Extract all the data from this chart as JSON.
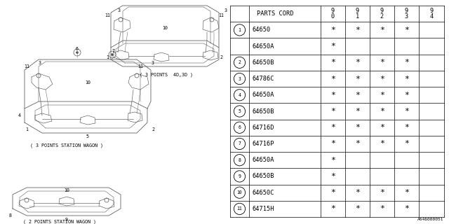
{
  "bg_color": "#ffffff",
  "rows": [
    [
      "1",
      "64650",
      true,
      true,
      true,
      true,
      false
    ],
    [
      "",
      "64650A",
      true,
      false,
      false,
      false,
      false
    ],
    [
      "2",
      "64650B",
      true,
      true,
      true,
      true,
      false
    ],
    [
      "3",
      "64786C",
      true,
      true,
      true,
      true,
      false
    ],
    [
      "4",
      "64650A",
      true,
      true,
      true,
      true,
      false
    ],
    [
      "5",
      "64650B",
      true,
      true,
      true,
      true,
      false
    ],
    [
      "6",
      "64716D",
      true,
      true,
      true,
      true,
      false
    ],
    [
      "7",
      "64716P",
      true,
      true,
      true,
      true,
      false
    ],
    [
      "8",
      "64650A",
      true,
      false,
      false,
      false,
      false
    ],
    [
      "9",
      "64650B",
      true,
      false,
      false,
      false,
      false
    ],
    [
      "10",
      "64650C",
      true,
      true,
      true,
      true,
      false
    ],
    [
      "11",
      "64715H",
      true,
      true,
      true,
      true,
      false
    ]
  ],
  "years": [
    "9\n0",
    "9\n1",
    "9\n2",
    "9\n3",
    "9\n4"
  ],
  "footer": "A646000051",
  "caption_sw3": "( 3 POINTS STATION WAGON )",
  "caption_4d": "( 3 POINTS  4D,3D )",
  "caption_sw2": "( 2 POINTS STATION WAGON )"
}
